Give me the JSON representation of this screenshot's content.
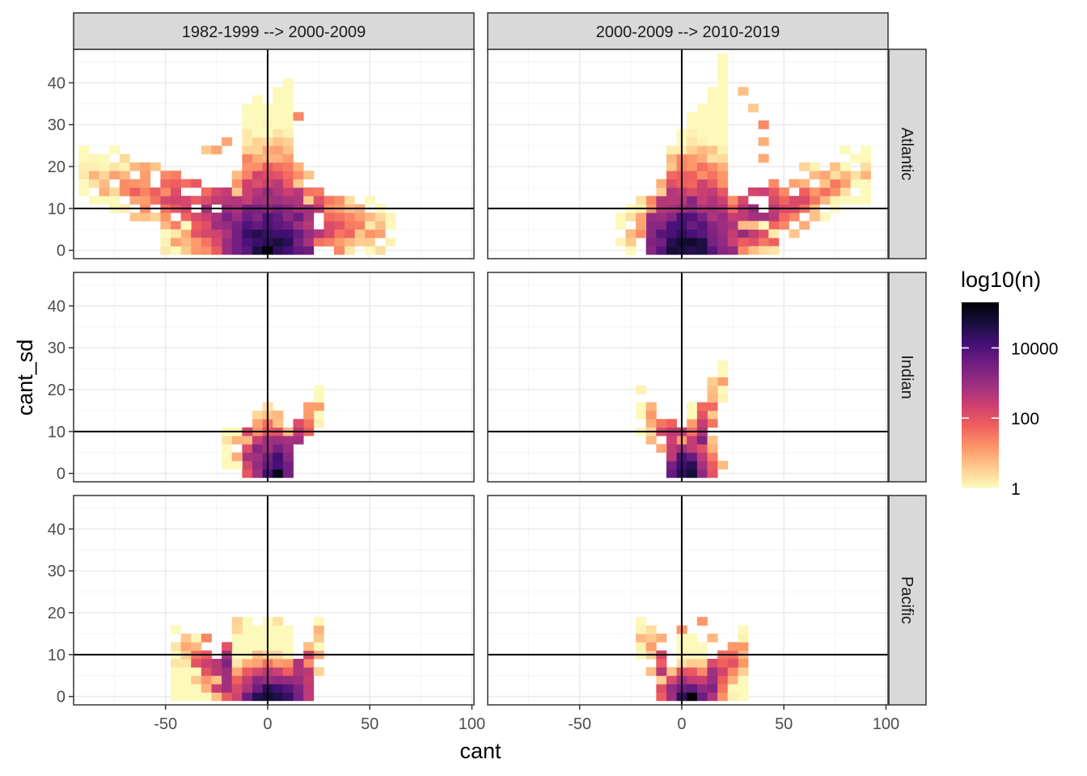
{
  "chart_data": {
    "type": "heatmap",
    "xlabel": "cant",
    "ylabel": "cant_sd",
    "xlim": [
      -95,
      101
    ],
    "ylim": [
      -2,
      48
    ],
    "x_ticks": [
      -50,
      0,
      50,
      100
    ],
    "x_tick_labels": [
      "-50",
      "0",
      "50",
      "100"
    ],
    "y_ticks": [
      0,
      10,
      20,
      30,
      40
    ],
    "y_tick_labels": [
      "0",
      "10",
      "20",
      "30",
      "40"
    ],
    "ref_lines": {
      "x": 0,
      "y": 10
    },
    "bin_width": {
      "x": 5,
      "y": 2
    },
    "col_facets": [
      "1982-1999 --> 2000-2009",
      "2000-2009 --> 2010-2019"
    ],
    "row_facets": [
      "Atlantic",
      "Indian",
      "Pacific"
    ],
    "legend": {
      "title": "log10(n)",
      "position": "right",
      "scale": "magma-reversed",
      "range_log10": [
        0,
        5.3
      ],
      "breaks": [
        {
          "label": "10000",
          "log10": 4
        },
        {
          "label": "100",
          "log10": 2
        },
        {
          "label": "1",
          "log10": 0
        }
      ]
    },
    "colors": {
      "panel_border": "#333333",
      "strip_fill": "#d9d9d9",
      "grid_major": "#ebebeb",
      "grid_minor": "#f4f4f4",
      "ref_line": "#000000",
      "axis_text": "#4d4d4d",
      "magma": [
        "#fcfdbf",
        "#feca8d",
        "#fd9668",
        "#f1605d",
        "#cd4071",
        "#9e2f7f",
        "#721f81",
        "#440f76",
        "#180f3d",
        "#000004"
      ]
    },
    "panels": [
      {
        "row": "Atlantic",
        "col": "1982-1999 --> 2000-2009",
        "seed": 11,
        "spec": {
          "main": {
            "x": [
              -18,
              22
            ],
            "sd": 16,
            "h": 32,
            "tall": {
              "x": [
                -10,
                12
              ],
              "h": 43
            }
          },
          "arms": [
            {
              "x": -88,
              "y": 18,
              "end_x": -20,
              "end_y": 8,
              "w": 3
            },
            {
              "x": 58,
              "y": 4,
              "end_x": 15,
              "end_y": 8,
              "w": 3
            },
            {
              "x": -50,
              "y": 2,
              "end_x": -5,
              "end_y": 2,
              "w": 2
            }
          ],
          "peak": 5.2,
          "extra": [
            [
              -28,
              24
            ],
            [
              -24,
              24
            ],
            [
              -18,
              26
            ],
            [
              15,
              32
            ],
            [
              22,
              18
            ],
            [
              27,
              14
            ],
            [
              30,
              10
            ],
            [
              34,
              8
            ]
          ]
        }
      },
      {
        "row": "Atlantic",
        "col": "2000-2009 --> 2010-2019",
        "seed": 23,
        "spec": {
          "main": {
            "x": [
              -15,
              25
            ],
            "sd": 15,
            "h": 30,
            "tall": {
              "x": [
                5,
                22
              ],
              "h": 45
            }
          },
          "arms": [
            {
              "x": 92,
              "y": 18,
              "end_x": 30,
              "end_y": 7,
              "w": 3
            },
            {
              "x": -28,
              "y": 4,
              "end_x": 0,
              "end_y": 4,
              "w": 3
            },
            {
              "x": 45,
              "y": 2,
              "end_x": 10,
              "end_y": 2,
              "w": 2
            }
          ],
          "peak": 5.2,
          "extra": [
            [
              35,
              34
            ],
            [
              38,
              30
            ],
            [
              40,
              26
            ],
            [
              42,
              22
            ],
            [
              30,
              38
            ],
            [
              -22,
              12
            ]
          ]
        }
      },
      {
        "row": "Indian",
        "col": "1982-1999 --> 2000-2009",
        "seed": 37,
        "spec": {
          "main": {
            "x": [
              -12,
              12
            ],
            "sd": 7,
            "h": 20
          },
          "arms": [
            {
              "x": 25,
              "y": 16,
              "end_x": 10,
              "end_y": 4,
              "w": 2
            },
            {
              "x": -20,
              "y": 6,
              "end_x": -5,
              "end_y": 4,
              "w": 2
            }
          ],
          "peak": 5.1,
          "extra": [
            [
              25,
              16
            ]
          ]
        }
      },
      {
        "row": "Indian",
        "col": "2000-2009 --> 2010-2019",
        "seed": 41,
        "spec": {
          "main": {
            "x": [
              -5,
              15
            ],
            "sd": 6,
            "h": 16
          },
          "arms": [
            {
              "x": -22,
              "y": 15,
              "end_x": -2,
              "end_y": 5,
              "w": 2
            },
            {
              "x": 20,
              "y": 22,
              "end_x": 8,
              "end_y": 8,
              "w": 2
            }
          ],
          "peak": 5.2,
          "extra": [
            [
              22,
              22
            ],
            [
              20,
              2
            ]
          ]
        }
      },
      {
        "row": "Pacific",
        "col": "1982-1999 --> 2000-2009",
        "seed": 53,
        "spec": {
          "main": {
            "x": [
              -45,
              20
            ],
            "sd": 10,
            "h": 12,
            "tall": {
              "x": [
                -15,
                10
              ],
              "h": 20
            }
          },
          "arms": [
            {
              "x": 25,
              "y": 14,
              "end_x": 15,
              "end_y": 4,
              "w": 2
            },
            {
              "x": -45,
              "y": 10,
              "end_x": -20,
              "end_y": 6,
              "w": 3
            }
          ],
          "peak": 5.3,
          "extra": [
            [
              -15,
              18
            ],
            [
              -15,
              16
            ],
            [
              5,
              18
            ]
          ]
        }
      },
      {
        "row": "Pacific",
        "col": "2000-2009 --> 2010-2019",
        "seed": 67,
        "spec": {
          "main": {
            "x": [
              -12,
              32
            ],
            "sd": 7,
            "h": 10,
            "tall": {
              "x": [
                -2,
                12
              ],
              "h": 18
            }
          },
          "arms": [
            {
              "x": -20,
              "y": 14,
              "end_x": -5,
              "end_y": 4,
              "w": 2
            },
            {
              "x": 32,
              "y": 12,
              "end_x": 15,
              "end_y": 4,
              "w": 2
            }
          ],
          "peak": 5.2,
          "extra": [
            [
              0,
              16
            ],
            [
              15,
              14
            ],
            [
              8,
              18
            ]
          ]
        }
      }
    ]
  }
}
